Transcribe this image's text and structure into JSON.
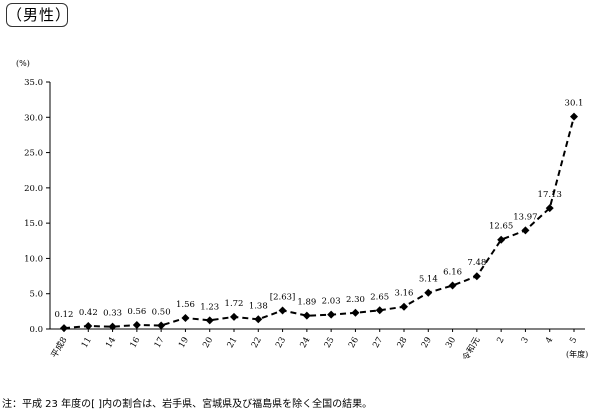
{
  "header": {
    "title": "（男性）"
  },
  "chart_data": {
    "type": "line",
    "y_unit_label": "(%)",
    "x_unit_label": "(年度)",
    "ylim": [
      0,
      35
    ],
    "y_ticks": [
      "0.0",
      "5.0",
      "10.0",
      "15.0",
      "20.0",
      "25.0",
      "30.0",
      "35.0"
    ],
    "categories": [
      "平成8",
      "11",
      "14",
      "16",
      "17",
      "19",
      "20",
      "21",
      "22",
      "23",
      "24",
      "25",
      "26",
      "27",
      "28",
      "29",
      "30",
      "令和元",
      "2",
      "3",
      "4",
      "5"
    ],
    "values": [
      0.12,
      0.42,
      0.33,
      0.56,
      0.5,
      1.56,
      1.23,
      1.72,
      1.38,
      2.63,
      1.89,
      2.03,
      2.3,
      2.65,
      3.16,
      5.14,
      6.16,
      7.48,
      12.65,
      13.97,
      17.13,
      30.1
    ],
    "value_labels": [
      "0.12",
      "0.42",
      "0.33",
      "0.56",
      "0.50",
      "1.56",
      "1.23",
      "1.72",
      "1.38",
      "[2.63]",
      "1.89",
      "2.03",
      "2.30",
      "2.65",
      "3.16",
      "5.14",
      "6.16",
      "7.48",
      "12.65",
      "13.97",
      "17.13",
      "30.1"
    ],
    "line_style": "dashed",
    "marker": "diamond",
    "grid": false
  },
  "footnote": "注：平成 23 年度の[ ]内の割合は、岩手県、宮城県及び福島県を除く全国の結果。"
}
